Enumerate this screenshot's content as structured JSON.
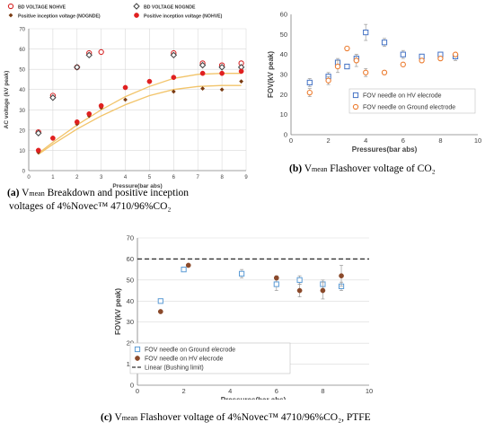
{
  "captions": {
    "a_letter": "(a)",
    "a_line1": "Breakdown and positive inception",
    "a_line2": "voltages of 4%Novec™ 4710/96%CO₂",
    "b_letter": "(b)",
    "b_text": "Flashover voltage of CO₂",
    "c_letter": "(c)",
    "c_text": "Flashover voltage of 4%Novec™ 4710/96%CO₂, PTFE",
    "v": "V",
    "mean": "mean"
  },
  "chart_data": [
    {
      "id": "a",
      "type": "scatter",
      "xlabel": "Pressure(bar abs)",
      "ylabel": "AC voltage (kV peak)",
      "xlim": [
        0,
        9
      ],
      "ylim": [
        0,
        70
      ],
      "xticks": [
        0,
        1,
        2,
        3,
        4,
        5,
        6,
        7,
        8,
        9
      ],
      "yticks": [
        0,
        10,
        20,
        30,
        40,
        50,
        60,
        70
      ],
      "grid": true,
      "legend_position": "top",
      "series": [
        {
          "name": "BD VOLTAGE NOHVE",
          "marker": "open-circle",
          "color": "#d62728",
          "x": [
            0.4,
            1.0,
            2.0,
            2.5,
            3.0,
            6.0,
            7.2,
            8.0,
            8.8
          ],
          "y": [
            19,
            37,
            51,
            58,
            58.5,
            58,
            53,
            52,
            53
          ]
        },
        {
          "name": "BD VOLTAGE NOGNDE",
          "marker": "open-diamond",
          "color": "#404040",
          "x": [
            0.4,
            1.0,
            2.0,
            2.5,
            6.0,
            7.2,
            8.0,
            8.8
          ],
          "y": [
            18.5,
            36,
            51,
            57,
            57,
            52,
            51,
            51
          ]
        },
        {
          "name": "Positive inception voltage (NOGNDE)",
          "marker": "filled-diamond",
          "color": "#7a3b12",
          "x": [
            0.4,
            1.0,
            2.0,
            2.5,
            3.0,
            4.0,
            6.0,
            7.2,
            8.0,
            8.8
          ],
          "y": [
            9,
            16,
            23,
            27,
            31,
            35,
            39,
            40.5,
            40,
            44
          ]
        },
        {
          "name": "Positive inception voltage (NOHVE)",
          "marker": "filled-circle",
          "color": "#e02020",
          "x": [
            0.4,
            1.0,
            2.0,
            2.5,
            3.0,
            4.0,
            5.0,
            6.0,
            7.2,
            8.0,
            8.8
          ],
          "y": [
            10,
            16,
            24,
            28,
            32,
            41,
            44,
            46,
            48,
            48,
            49
          ]
        }
      ],
      "trendlines": [
        {
          "x": [
            0.4,
            1,
            2,
            3,
            4,
            5,
            6,
            7,
            8,
            8.8
          ],
          "y": [
            8.5,
            14,
            22.5,
            30,
            36.5,
            41.5,
            45.5,
            47.5,
            48,
            48
          ],
          "color": "#f2c46a"
        },
        {
          "x": [
            0.4,
            1,
            2,
            3,
            4,
            5,
            6,
            7,
            8,
            8.8
          ],
          "y": [
            8,
            13,
            20.5,
            27,
            32.5,
            37,
            40,
            41.5,
            42,
            42
          ],
          "color": "#f2c46a"
        }
      ]
    },
    {
      "id": "b",
      "type": "scatter",
      "xlabel": "Pressures(bar abs)",
      "ylabel": "FOV(kV peak)",
      "xlim": [
        0,
        10
      ],
      "ylim": [
        0,
        60
      ],
      "xticks": [
        0,
        2,
        4,
        6,
        8,
        10
      ],
      "yticks": [
        0,
        10,
        20,
        30,
        40,
        50,
        60
      ],
      "grid": false,
      "legend_position": "bottom-right",
      "series": [
        {
          "name": "FOV needle on HV elecrode",
          "marker": "open-square",
          "color": "#4472c4",
          "x": [
            1,
            2,
            2.5,
            3,
            3.5,
            4,
            5,
            6,
            7,
            8,
            8.8
          ],
          "y": [
            26,
            29,
            36,
            34,
            38,
            51,
            46,
            40,
            39,
            40,
            39
          ],
          "err": [
            2,
            2,
            2,
            1,
            2,
            4,
            2,
            2,
            1,
            1,
            2
          ]
        },
        {
          "name": "FOV needle on Ground electrode",
          "marker": "open-circle",
          "color": "#ed7d31",
          "x": [
            1,
            2,
            2.5,
            3,
            3.5,
            4,
            5,
            6,
            7,
            8,
            8.8
          ],
          "y": [
            21,
            27,
            34,
            43,
            37,
            31,
            31,
            35,
            37,
            38,
            40
          ],
          "err": [
            2,
            2,
            3,
            1,
            3,
            2,
            1,
            1,
            1,
            1,
            1
          ]
        }
      ]
    },
    {
      "id": "c",
      "type": "scatter",
      "xlabel": "Pressures(bar abs)",
      "ylabel": "FOV(kV peak)",
      "xlim": [
        0,
        10
      ],
      "ylim": [
        0,
        70
      ],
      "xticks": [
        0,
        2,
        4,
        6,
        8,
        10
      ],
      "yticks": [
        0,
        10,
        20,
        30,
        40,
        50,
        60,
        70
      ],
      "grid": true,
      "legend_position": "bottom",
      "series": [
        {
          "name": "FOV needle on Ground elecrode",
          "marker": "open-square",
          "color": "#5b9bd5",
          "x": [
            1,
            2,
            4.5,
            6,
            7,
            8,
            8.8
          ],
          "y": [
            40,
            55,
            53,
            48,
            50,
            48,
            47
          ],
          "err": [
            1,
            1,
            2,
            3,
            2,
            2,
            2
          ]
        },
        {
          "name": "FOV needle on HV elecrode",
          "marker": "filled-circle",
          "color": "#8b4a2b",
          "x": [
            1,
            2.2,
            6,
            7,
            8,
            8.8
          ],
          "y": [
            35,
            57,
            51,
            45,
            45,
            52
          ],
          "err": [
            0,
            0,
            1,
            3,
            4,
            5
          ]
        },
        {
          "name": "Linear (Bushing limit)",
          "marker": "dashed-line",
          "color": "#333333",
          "x": [
            0,
            10
          ],
          "y": [
            60,
            60
          ]
        }
      ]
    }
  ]
}
